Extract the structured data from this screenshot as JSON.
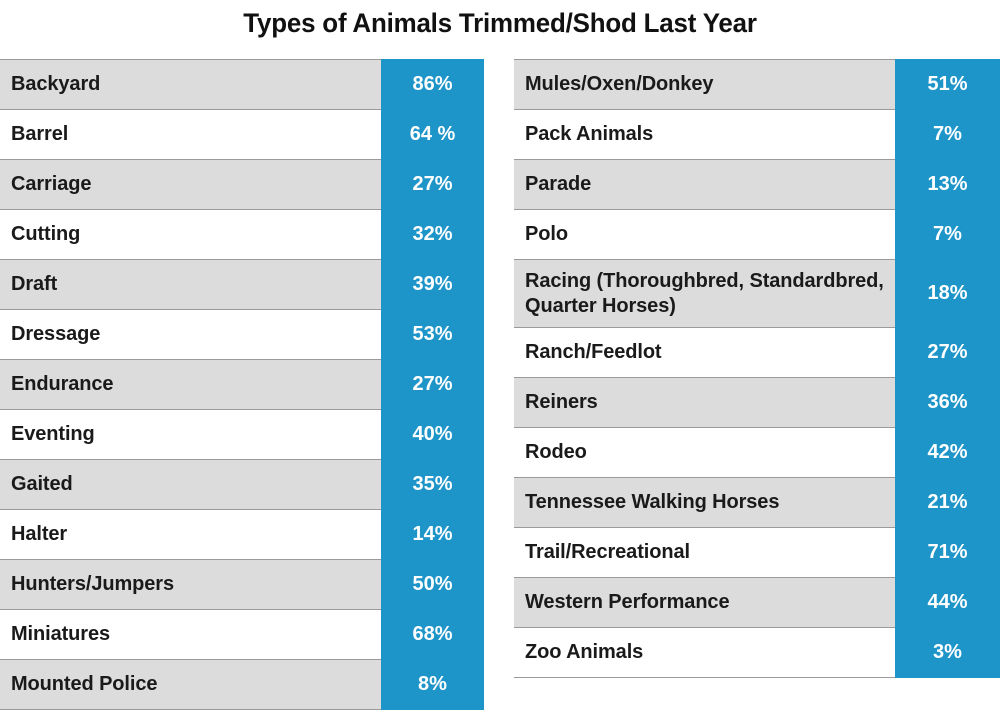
{
  "chart_data": {
    "type": "table",
    "title": "Types of Animals Trimmed/Shod Last Year",
    "columns": [
      {
        "rows": [
          {
            "label": "Backyard",
            "value": "86%"
          },
          {
            "label": "Barrel",
            "value": "64 %"
          },
          {
            "label": "Carriage",
            "value": "27%"
          },
          {
            "label": "Cutting",
            "value": "32%"
          },
          {
            "label": "Draft",
            "value": "39%"
          },
          {
            "label": "Dressage",
            "value": "53%"
          },
          {
            "label": "Endurance",
            "value": "27%"
          },
          {
            "label": "Eventing",
            "value": "40%"
          },
          {
            "label": "Gaited",
            "value": "35%"
          },
          {
            "label": "Halter",
            "value": "14%"
          },
          {
            "label": "Hunters/Jumpers",
            "value": "50%"
          },
          {
            "label": "Miniatures",
            "value": "68%"
          },
          {
            "label": "Mounted Police",
            "value": "8%"
          }
        ]
      },
      {
        "rows": [
          {
            "label": "Mules/Oxen/Donkey",
            "value": "51%"
          },
          {
            "label": "Pack Animals",
            "value": "7%"
          },
          {
            "label": "Parade",
            "value": "13%"
          },
          {
            "label": "Polo",
            "value": "7%"
          },
          {
            "label": "Racing (Thoroughbred, Standardbred, Quarter Horses)",
            "value": "18%"
          },
          {
            "label": "Ranch/Feedlot",
            "value": "27%"
          },
          {
            "label": "Reiners",
            "value": "36%"
          },
          {
            "label": "Rodeo",
            "value": "42%"
          },
          {
            "label": "Tennessee Walking Horses",
            "value": "21%"
          },
          {
            "label": "Trail/Recreational",
            "value": "71%"
          },
          {
            "label": "Western Performance",
            "value": "44%"
          },
          {
            "label": "Zoo Animals",
            "value": "3%"
          }
        ]
      }
    ]
  },
  "colors": {
    "value_fill": "#1e95c9",
    "shaded_row": "#dcdcdc",
    "text": "#1a1a1a"
  }
}
